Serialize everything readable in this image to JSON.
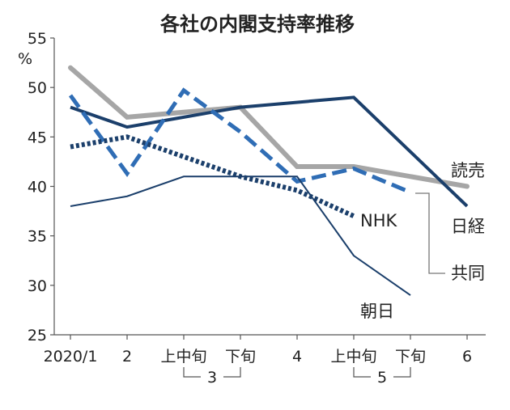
{
  "chart_data": {
    "type": "line",
    "title": "各社の内閣支持率推移",
    "ylabel": "%",
    "ylim": [
      25,
      55
    ],
    "yticks": [
      25,
      30,
      35,
      40,
      45,
      50,
      55
    ],
    "x_labels": [
      "2020/1",
      "2",
      "上中旬",
      "下旬",
      "4",
      "上中旬",
      "下旬",
      "6"
    ],
    "x_groups": [
      {
        "label": "3",
        "from": 2,
        "to": 3
      },
      {
        "label": "5",
        "from": 5,
        "to": 6
      }
    ],
    "series": [
      {
        "name": "読売",
        "color": "#a6a6a6",
        "style": "solid-thick",
        "x": [
          0,
          1,
          3,
          4,
          5,
          7
        ],
        "values": [
          52,
          47,
          48,
          42,
          42,
          40
        ]
      },
      {
        "name": "日経",
        "color": "#1b3f6b",
        "style": "solid",
        "x": [
          0,
          1,
          2,
          3,
          5,
          7
        ],
        "values": [
          48,
          46,
          47,
          48,
          49,
          38
        ]
      },
      {
        "name": "共同",
        "color": "#2f6db5",
        "style": "dashed",
        "x": [
          0,
          1,
          2,
          3,
          4,
          5,
          6
        ],
        "values": [
          49.2,
          41.3,
          49.7,
          45.5,
          40.5,
          41.8,
          39.4
        ]
      },
      {
        "name": "NHK",
        "color": "#1b3f6b",
        "style": "dotted",
        "x": [
          0,
          1,
          2,
          3,
          4,
          5
        ],
        "values": [
          44,
          45,
          43,
          41,
          39.6,
          37
        ]
      },
      {
        "name": "朝日",
        "color": "#1b3f6b",
        "style": "thin",
        "x": [
          0,
          1,
          2,
          3,
          4,
          5,
          6
        ],
        "values": [
          38,
          39,
          41,
          41,
          41,
          33,
          29
        ]
      }
    ]
  }
}
